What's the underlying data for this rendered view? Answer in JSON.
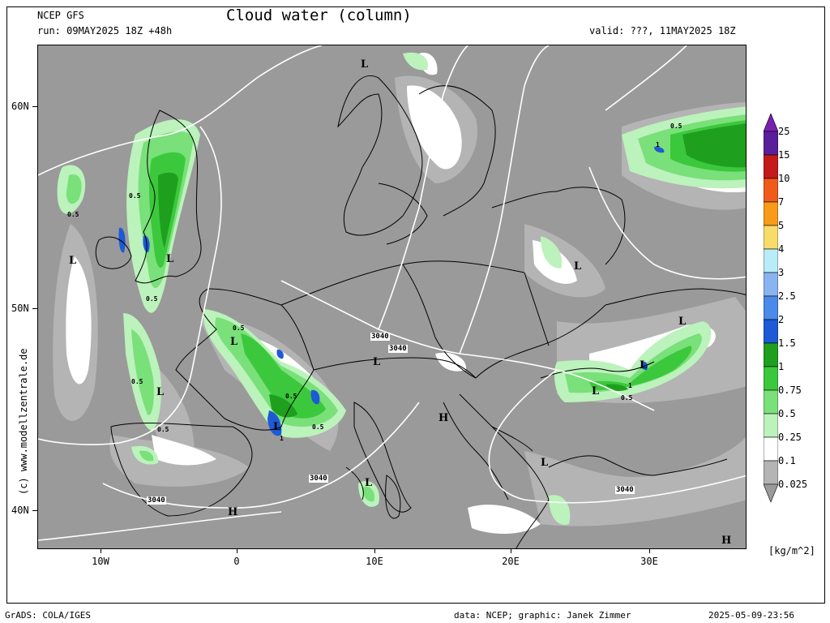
{
  "header": {
    "model": "NCEP GFS",
    "run": "run: 09MAY2025 18Z +48h",
    "title": "Cloud water (column)",
    "valid": "valid: ???, 11MAY2025 18Z"
  },
  "side_label": "(c) www.modellzentrale.de",
  "lat_labels": [
    "60N",
    "50N",
    "40N"
  ],
  "lon_labels": [
    "10W",
    "0",
    "10E",
    "20E",
    "30E"
  ],
  "legend": {
    "levels": [
      "25",
      "15",
      "10",
      "7",
      "5",
      "4",
      "3",
      "2.5",
      "2",
      "1.5",
      "1",
      "0.75",
      "0.5",
      "0.25",
      "0.1",
      "0.025"
    ],
    "colors": [
      "#7a1fb0",
      "#5a1f9a",
      "#c41a1a",
      "#f05a1a",
      "#f89a1a",
      "#f8dc6a",
      "#b8ecf8",
      "#8ab4f0",
      "#4a8ae8",
      "#1e5ad6",
      "#1ea01e",
      "#3cc83c",
      "#7ae07a",
      "#bcf2bc",
      "#ffffff",
      "#b4b4b4",
      "#9a9a9a"
    ],
    "units": "[kg/m^2]"
  },
  "map_labels": {
    "pressure": [
      "L",
      "L",
      "L",
      "L",
      "L",
      "L",
      "L",
      "L",
      "L",
      "L",
      "L",
      "L",
      "H",
      "H",
      "H"
    ],
    "contours": [
      "3040",
      "3040",
      "3040",
      "3040",
      "3040"
    ],
    "shade_values": [
      "0.5",
      "0.5",
      "0.5",
      "0.5",
      "0.5",
      "0.5",
      "0.5",
      "0.5",
      "0.5",
      "0.5",
      "1",
      "1",
      "1"
    ]
  },
  "footer": {
    "left": "GrADS: COLA/IGES",
    "center": "data: NCEP; graphic: Janek Zimmer",
    "right": "2025-05-09-23:56"
  }
}
